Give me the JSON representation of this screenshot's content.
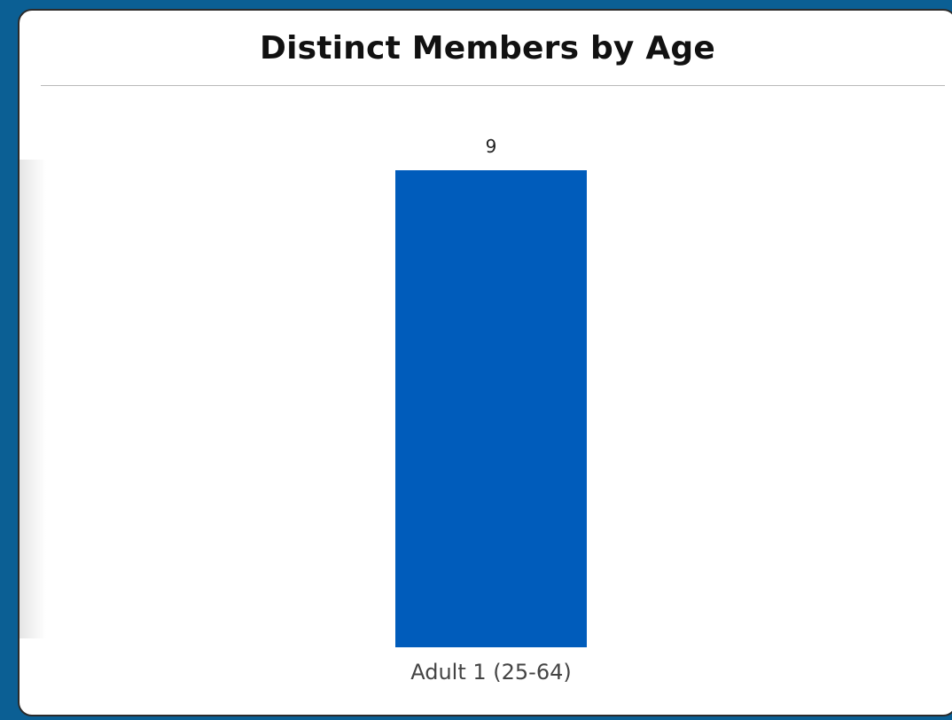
{
  "chart_data": {
    "type": "bar",
    "title": "Distinct Members by Age",
    "categories": [
      "Adult 1 (25-64)"
    ],
    "values": [
      9
    ],
    "data_labels": [
      "9"
    ],
    "ylim": [
      0,
      9
    ],
    "grid": false,
    "bar_color": "#005cbb"
  },
  "colors": {
    "background": "#0b5f94",
    "card": "#ffffff",
    "bar": "#005cbb"
  }
}
